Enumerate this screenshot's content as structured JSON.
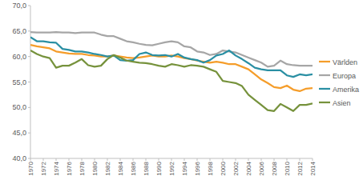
{
  "chart_data": {
    "type": "line",
    "x": [
      1970,
      1971,
      1972,
      1973,
      1974,
      1975,
      1976,
      1977,
      1978,
      1979,
      1980,
      1981,
      1982,
      1983,
      1984,
      1985,
      1986,
      1987,
      1988,
      1989,
      1990,
      1991,
      1992,
      1993,
      1994,
      1995,
      1996,
      1997,
      1998,
      1999,
      2000,
      2001,
      2002,
      2003,
      2004,
      2005,
      2006,
      2007,
      2008,
      2009,
      2010,
      2011,
      2012,
      2013,
      2014
    ],
    "xlim": [
      1970,
      2014
    ],
    "xticks": [
      1970,
      1972,
      1974,
      1976,
      1978,
      1980,
      1982,
      1984,
      1986,
      1988,
      1990,
      1992,
      1994,
      1996,
      1998,
      2000,
      2002,
      2004,
      2006,
      2008,
      2010,
      2012,
      2014
    ],
    "ylim": [
      40,
      70
    ],
    "yticks": [
      {
        "value": 40,
        "label": "40,0"
      },
      {
        "value": 45,
        "label": "45,0"
      },
      {
        "value": 50,
        "label": "50,0"
      },
      {
        "value": 55,
        "label": "55,0"
      },
      {
        "value": 60,
        "label": "60,0"
      },
      {
        "value": 65,
        "label": "65,0"
      },
      {
        "value": 70,
        "label": "70,0"
      }
    ],
    "grid": false,
    "legend": "right",
    "series": [
      {
        "name": "Världen",
        "color": "#f59d2a",
        "values": [
          62.3,
          62.0,
          61.8,
          61.6,
          61.0,
          60.8,
          60.6,
          60.5,
          60.5,
          60.3,
          60.2,
          60.0,
          60.0,
          60.2,
          60.0,
          59.8,
          59.7,
          59.8,
          60.0,
          60.2,
          60.0,
          60.0,
          60.2,
          60.0,
          59.7,
          59.5,
          59.2,
          59.0,
          58.8,
          59.0,
          58.8,
          58.5,
          58.5,
          58.0,
          57.5,
          56.5,
          55.5,
          54.8,
          54.0,
          53.8,
          54.3,
          53.5,
          53.2,
          53.7,
          53.8
        ]
      },
      {
        "name": "Europa",
        "color": "#a6a6a6",
        "values": [
          64.8,
          64.7,
          64.7,
          64.7,
          64.8,
          64.7,
          64.7,
          64.6,
          64.7,
          64.7,
          64.7,
          64.3,
          64.0,
          64.0,
          63.5,
          63.0,
          62.8,
          62.5,
          62.3,
          62.2,
          62.5,
          62.8,
          63.0,
          62.8,
          62.0,
          61.8,
          61.0,
          60.8,
          60.3,
          60.5,
          61.2,
          61.0,
          60.8,
          60.3,
          59.8,
          59.3,
          58.8,
          58.0,
          58.2,
          59.2,
          58.5,
          58.3,
          58.2,
          58.2,
          58.2
        ]
      },
      {
        "name": "Amerika",
        "color": "#2a8fa3",
        "values": [
          63.8,
          63.0,
          63.0,
          62.8,
          62.7,
          61.5,
          61.3,
          61.0,
          61.0,
          60.8,
          60.5,
          60.3,
          60.0,
          60.2,
          59.3,
          59.2,
          59.3,
          60.5,
          60.8,
          60.3,
          60.2,
          60.3,
          60.0,
          60.5,
          59.8,
          59.5,
          59.3,
          58.8,
          59.3,
          60.2,
          60.5,
          61.2,
          60.2,
          59.5,
          58.7,
          57.8,
          57.5,
          57.3,
          57.3,
          57.3,
          56.3,
          56.0,
          56.5,
          56.3,
          56.5
        ]
      },
      {
        "name": "Asien",
        "color": "#76923c",
        "values": [
          61.2,
          60.5,
          60.0,
          59.7,
          57.8,
          58.2,
          58.2,
          58.8,
          59.5,
          58.3,
          58.0,
          58.2,
          59.5,
          60.3,
          59.8,
          59.2,
          59.0,
          58.8,
          58.7,
          58.5,
          58.2,
          58.0,
          58.5,
          58.3,
          58.0,
          58.3,
          58.2,
          58.0,
          57.5,
          57.0,
          55.2,
          55.0,
          54.8,
          54.2,
          52.5,
          51.5,
          50.5,
          49.5,
          49.3,
          50.7,
          50.0,
          49.3,
          50.5,
          50.5,
          50.8
        ]
      }
    ]
  }
}
